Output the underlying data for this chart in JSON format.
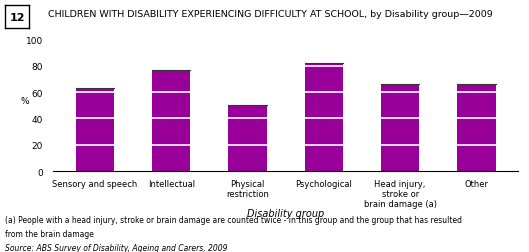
{
  "title": "CHILDREN WITH DISABILITY EXPERIENCING DIFFICULTY AT SCHOOL, by Disability group—2009",
  "chart_number": "12",
  "categories": [
    "Sensory and speech",
    "Intellectual",
    "Physical\nrestriction",
    "Psychological",
    "Head injury,\nstroke or\nbrain damage (a)",
    "Other"
  ],
  "total_heights": [
    63,
    77,
    50,
    82,
    66,
    66
  ],
  "segment_size": 20,
  "bar_color": "#990099",
  "ylim": [
    0,
    100
  ],
  "yticks": [
    0,
    20,
    40,
    60,
    80,
    100
  ],
  "ylabel": "%",
  "xlabel": "Disability group",
  "footnote1": "(a) People with a head injury, stroke or brain damage are counted twice - in this group and the group that has resulted",
  "footnote2": "from the brain damage",
  "source": "Source: ABS Survey of Disability, Ageing and Carers, 2009",
  "bar_width": 0.5
}
